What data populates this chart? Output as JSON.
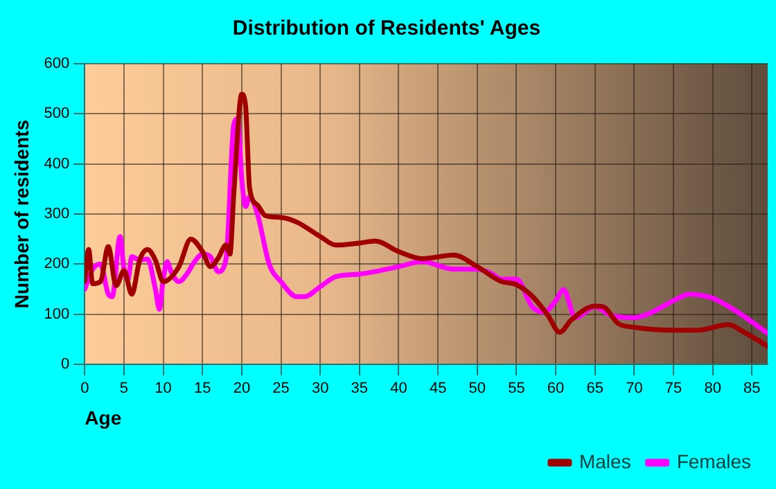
{
  "chart_data": {
    "type": "line",
    "title": "Distribution of Residents' Ages",
    "xlabel": "Age",
    "ylabel": "Number of residents",
    "xlim": [
      0,
      87
    ],
    "xticks": [
      0,
      5,
      10,
      15,
      20,
      25,
      30,
      35,
      40,
      45,
      50,
      55,
      60,
      65,
      70,
      75,
      80,
      85
    ],
    "ylim": [
      0,
      600
    ],
    "yticks": [
      0,
      100,
      200,
      300,
      400,
      500,
      600
    ],
    "grid": true,
    "legend": "bottom right",
    "marker": "none",
    "line_style": "solid",
    "series": [
      {
        "name": "Males",
        "color": "#a00000",
        "x": [
          0,
          0.5,
          1,
          2,
          3,
          4,
          5,
          6,
          7,
          8,
          9,
          10,
          12,
          13.5,
          15,
          16,
          17,
          18,
          18.5,
          19,
          20,
          20.5,
          21,
          22,
          23,
          25,
          27,
          30,
          32,
          35,
          37,
          40,
          43,
          47,
          50,
          53,
          55,
          57,
          59,
          60.5,
          62,
          65,
          66,
          68,
          70,
          75,
          78,
          82,
          84,
          87
        ],
        "values": [
          165,
          229,
          161,
          165,
          235,
          157,
          187,
          140,
          208,
          229,
          208,
          165,
          195,
          250,
          225,
          195,
          212,
          238,
          220,
          344,
          539,
          514,
          352,
          318,
          297,
          293,
          284,
          255,
          238,
          242,
          246,
          225,
          211,
          218,
          195,
          166,
          159,
          136,
          98,
          64,
          89,
          116,
          115,
          81,
          74,
          68,
          68,
          79,
          64,
          36
        ]
      },
      {
        "name": "Females",
        "color": "#ff00ff",
        "x": [
          0,
          1,
          2,
          3,
          3.5,
          4.5,
          5,
          5.5,
          6,
          7,
          8,
          9,
          9.5,
          10,
          10.5,
          11,
          12,
          13,
          14,
          15,
          16,
          17,
          18,
          19,
          19.5,
          20,
          20.5,
          21,
          22,
          23.5,
          25,
          27,
          28,
          30,
          32,
          35,
          37,
          40,
          43,
          47,
          50,
          52,
          53,
          55,
          57,
          58.5,
          60,
          61,
          62.5,
          65,
          67,
          70,
          72,
          75,
          77,
          80,
          83,
          87
        ],
        "values": [
          150,
          190,
          200,
          140,
          135,
          255,
          190,
          170,
          215,
          208,
          210,
          150,
          110,
          170,
          205,
          185,
          165,
          180,
          205,
          220,
          215,
          185,
          210,
          480,
          490,
          370,
          315,
          335,
          300,
          200,
          165,
          135,
          135,
          155,
          175,
          180,
          185,
          195,
          205,
          190,
          190,
          180,
          170,
          170,
          115,
          104,
          127,
          149,
          93,
          115,
          98,
          93,
          102,
          127,
          140,
          132,
          106,
          62
        ]
      }
    ]
  }
}
